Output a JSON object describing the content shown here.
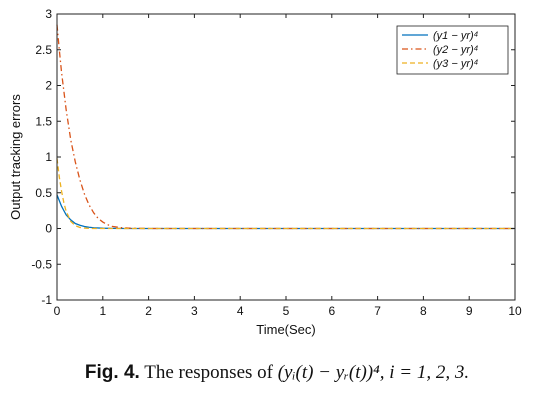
{
  "chart_data": {
    "type": "line",
    "xlabel": "Time(Sec)",
    "ylabel": "Output tracking errors",
    "xlim": [
      0,
      10
    ],
    "ylim": [
      -1,
      3
    ],
    "xticks": [
      "0",
      "1",
      "2",
      "3",
      "4",
      "5",
      "6",
      "7",
      "8",
      "9",
      "10"
    ],
    "yticks": [
      "-1",
      "-0.5",
      "0",
      "0.5",
      "1",
      "1.5",
      "2",
      "2.5",
      "3"
    ],
    "legend_position": "top-right",
    "grid": false,
    "series": [
      {
        "name": "(y1 − yr)⁴",
        "color": "#0072BD",
        "dash": "solid",
        "x": [
          0,
          0.05,
          0.1,
          0.15,
          0.2,
          0.3,
          0.4,
          0.5,
          0.6,
          0.7,
          0.8,
          1.0,
          1.2,
          1.5,
          2,
          3,
          4,
          5,
          6,
          7,
          8,
          9,
          10
        ],
        "y": [
          0.47,
          0.39,
          0.31,
          0.25,
          0.19,
          0.12,
          0.07,
          0.045,
          0.028,
          0.017,
          0.01,
          0.004,
          0.002,
          0,
          0,
          0,
          0,
          0,
          0,
          0,
          0,
          0,
          0
        ]
      },
      {
        "name": "(y2 − yr)⁴",
        "color": "#D95319",
        "dash": "dashdot",
        "x": [
          0,
          0.05,
          0.1,
          0.15,
          0.2,
          0.3,
          0.4,
          0.5,
          0.6,
          0.7,
          0.8,
          0.9,
          1.0,
          1.1,
          1.2,
          1.4,
          1.6,
          2,
          3,
          4,
          5,
          6,
          7,
          8,
          9,
          10
        ],
        "y": [
          2.85,
          2.5,
          2.18,
          1.92,
          1.66,
          1.24,
          0.93,
          0.68,
          0.48,
          0.33,
          0.22,
          0.14,
          0.09,
          0.055,
          0.03,
          0.012,
          0.004,
          0,
          0,
          0,
          0,
          0,
          0,
          0,
          0,
          0
        ]
      },
      {
        "name": "(y3 − yr)⁴",
        "color": "#EDB120",
        "dash": "dashed",
        "x": [
          0,
          0.05,
          0.1,
          0.15,
          0.2,
          0.3,
          0.4,
          0.5,
          0.6,
          0.7,
          0.8,
          1.0,
          1.2,
          1.5,
          2,
          3,
          4,
          5,
          6,
          7,
          8,
          9,
          10
        ],
        "y": [
          0.98,
          0.72,
          0.52,
          0.36,
          0.24,
          0.1,
          0.04,
          0.015,
          0.006,
          0.002,
          0,
          0,
          0,
          0,
          0,
          0,
          0,
          0,
          0,
          0,
          0,
          0,
          0
        ]
      }
    ]
  },
  "caption": {
    "label": "Fig. 4.",
    "text_before": "The responses of ",
    "expression": "(yᵢ(t) − yᵣ(t))⁴, i = 1, 2, 3."
  }
}
